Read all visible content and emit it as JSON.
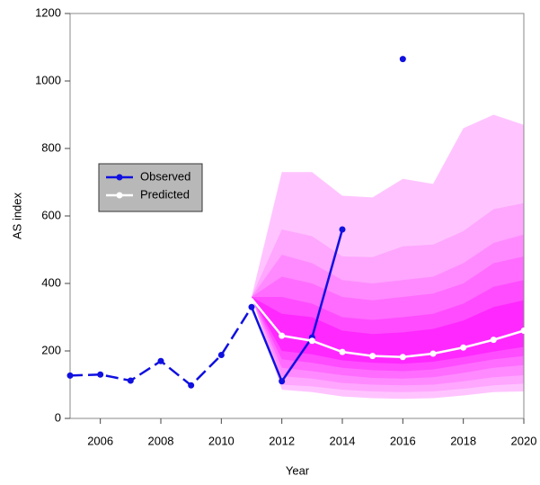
{
  "chart_data": {
    "type": "fan",
    "xlabel": "Year",
    "ylabel": "AS index",
    "xlim": [
      2005,
      2020
    ],
    "xticks": [
      2006,
      2008,
      2010,
      2012,
      2014,
      2016,
      2018,
      2020
    ],
    "ylim": [
      0,
      1200
    ],
    "yticks": [
      0,
      200,
      400,
      600,
      800,
      1000,
      1200
    ],
    "legend": "left",
    "series": [
      {
        "name": "Observed",
        "color": "#1010e0",
        "x": [
          2005,
          2006,
          2007,
          2008,
          2009,
          2010,
          2011,
          2012,
          2013,
          2014,
          2015,
          2016
        ],
        "values": [
          127,
          130,
          112,
          170,
          98,
          188,
          330,
          110,
          240,
          560,
          null,
          1065
        ]
      },
      {
        "name": "Predicted",
        "color": "#ffffff",
        "x": [
          2011,
          2012,
          2013,
          2014,
          2015,
          2016,
          2017,
          2018,
          2019,
          2020
        ],
        "values": [
          355,
          245,
          230,
          197,
          185,
          182,
          192,
          210,
          233,
          260
        ]
      }
    ],
    "bands_x": [
      2011,
      2012,
      2013,
      2014,
      2015,
      2016,
      2017,
      2018,
      2019,
      2020
    ],
    "bands": [
      {
        "color": "#ffc4ff",
        "upper": [
          360,
          730,
          730,
          660,
          655,
          710,
          695,
          860,
          900,
          870
        ],
        "lower": [
          360,
          85,
          78,
          65,
          60,
          58,
          60,
          68,
          78,
          80
        ]
      },
      {
        "color": "#ffa6ff",
        "upper": [
          360,
          560,
          540,
          480,
          478,
          510,
          515,
          555,
          620,
          638
        ],
        "lower": [
          360,
          100,
          95,
          85,
          80,
          78,
          80,
          88,
          98,
          103
        ]
      },
      {
        "color": "#ff8aff",
        "upper": [
          360,
          485,
          460,
          410,
          400,
          410,
          420,
          460,
          520,
          545
        ],
        "lower": [
          360,
          125,
          118,
          105,
          100,
          98,
          100,
          110,
          122,
          128
        ]
      },
      {
        "color": "#ff6cff",
        "upper": [
          360,
          420,
          400,
          360,
          350,
          360,
          370,
          400,
          460,
          480
        ],
        "lower": [
          360,
          150,
          140,
          128,
          120,
          118,
          122,
          135,
          150,
          158
        ]
      },
      {
        "color": "#ff4cff",
        "upper": [
          360,
          360,
          340,
          300,
          292,
          300,
          310,
          340,
          390,
          410
        ],
        "lower": [
          360,
          175,
          165,
          150,
          143,
          140,
          145,
          160,
          175,
          185
        ]
      },
      {
        "color": "#ff28ff",
        "upper": [
          360,
          310,
          300,
          260,
          250,
          255,
          265,
          290,
          330,
          350
        ],
        "lower": [
          360,
          200,
          190,
          172,
          165,
          162,
          168,
          182,
          198,
          212
        ]
      }
    ]
  }
}
